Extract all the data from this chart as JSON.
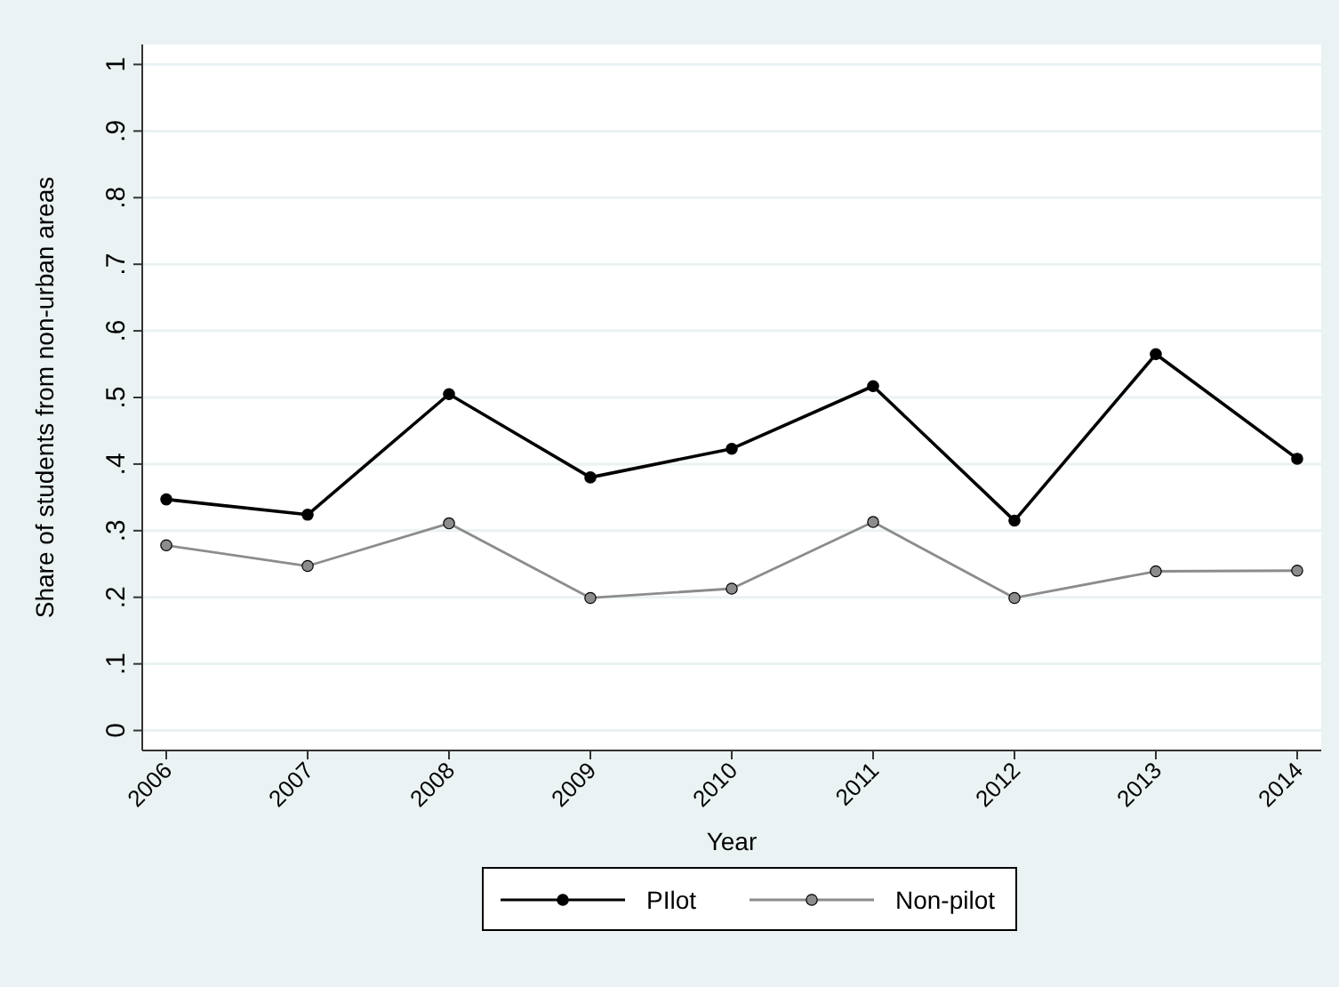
{
  "chart_data": {
    "type": "line",
    "xlabel": "Year",
    "ylabel": "Share of students from non-urban areas",
    "categories": [
      "2006",
      "2007",
      "2008",
      "2009",
      "2010",
      "2011",
      "2012",
      "2013",
      "2014"
    ],
    "series": [
      {
        "name": "PIlot",
        "color": "#000000",
        "values": [
          0.347,
          0.324,
          0.505,
          0.38,
          0.423,
          0.517,
          0.315,
          0.565,
          0.408
        ]
      },
      {
        "name": "Non-pilot",
        "color": "#8c8c8c",
        "values": [
          0.278,
          0.247,
          0.311,
          0.199,
          0.213,
          0.313,
          0.199,
          0.239,
          0.24
        ]
      }
    ],
    "ylim": [
      -0.03,
      1.03
    ],
    "yticks": [
      {
        "value": 0,
        "label": "0"
      },
      {
        "value": 0.1,
        "label": ".1"
      },
      {
        "value": 0.2,
        "label": ".2"
      },
      {
        "value": 0.3,
        "label": ".3"
      },
      {
        "value": 0.4,
        "label": ".4"
      },
      {
        "value": 0.5,
        "label": ".5"
      },
      {
        "value": 0.6,
        "label": ".6"
      },
      {
        "value": 0.7,
        "label": ".7"
      },
      {
        "value": 0.8,
        "label": ".8"
      },
      {
        "value": 0.9,
        "label": ".9"
      },
      {
        "value": 1,
        "label": "1"
      }
    ],
    "grid": "y",
    "legend": "bottom",
    "marker": "circle",
    "line_style": "solid"
  }
}
